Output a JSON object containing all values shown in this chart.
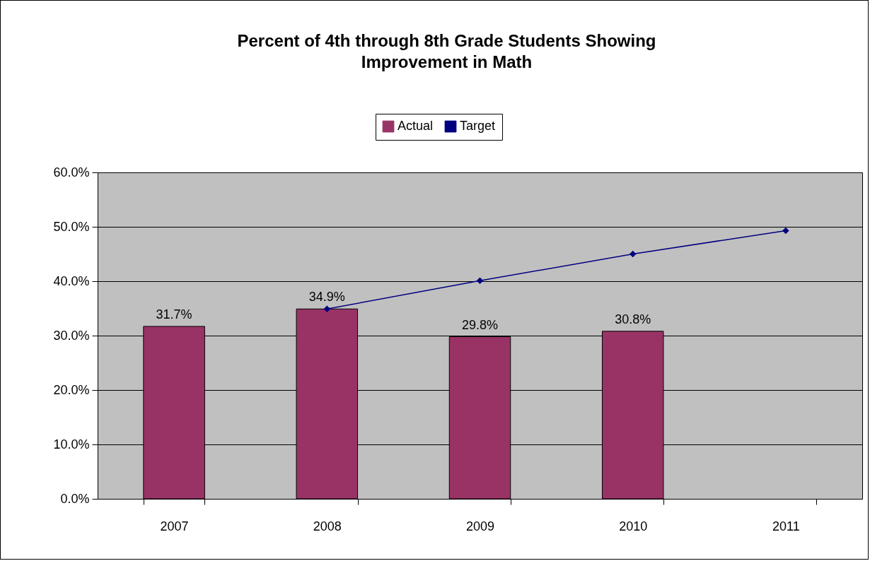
{
  "chart_data": {
    "type": "bar",
    "title": "Percent of 4th through 8th Grade Students Showing\nImprovement in Math",
    "categories": [
      "2007",
      "2008",
      "2009",
      "2010",
      "2011"
    ],
    "series": [
      {
        "name": "Actual",
        "color": "#993366",
        "values": [
          31.7,
          34.9,
          29.8,
          30.8,
          null
        ],
        "value_labels": [
          "31.7%",
          "34.9%",
          "29.8%",
          "30.8%",
          null
        ]
      },
      {
        "name": "Target",
        "type": "line",
        "color": "#000080",
        "marker": "diamond",
        "values": [
          null,
          34.9,
          40.1,
          45.0,
          49.3
        ]
      }
    ],
    "ylim": [
      0,
      60
    ],
    "yticks": [
      {
        "value": 0,
        "label": "0.0%"
      },
      {
        "value": 10,
        "label": "10.0%"
      },
      {
        "value": 20,
        "label": "20.0%"
      },
      {
        "value": 30,
        "label": "30.0%"
      },
      {
        "value": 40,
        "label": "40.0%"
      },
      {
        "value": 50,
        "label": "50.0%"
      },
      {
        "value": 60,
        "label": "60.0%"
      }
    ],
    "grid": "y",
    "legend": "top"
  }
}
